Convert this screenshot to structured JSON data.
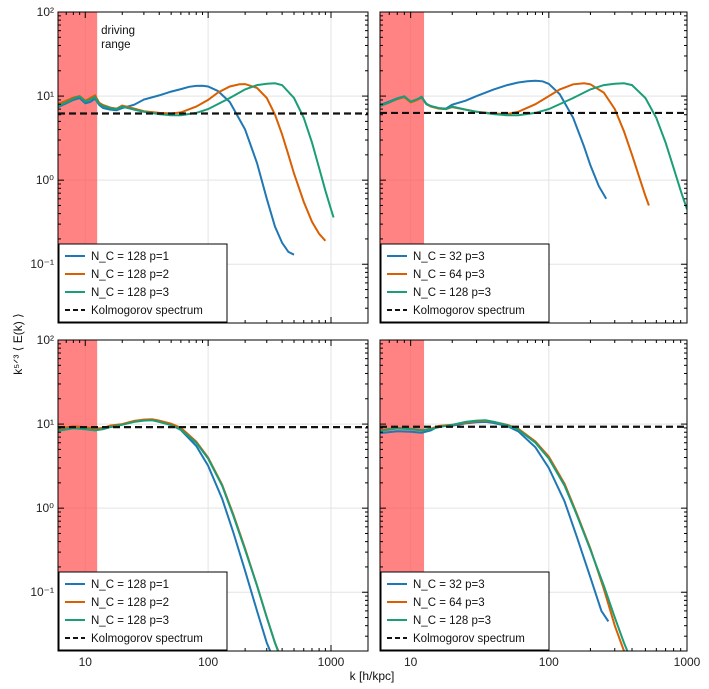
{
  "figure": {
    "ylabel": "k⁵ᐟ³ ⟨ E(k) ⟩",
    "xlabel": "k [h/kpc]"
  },
  "chart_data": [
    {
      "type": "line",
      "panel": "top-left",
      "xscale": "log",
      "yscale": "log",
      "xlim": [
        6,
        2000
      ],
      "ylim": [
        0.02,
        100
      ],
      "xticks": [
        10,
        100,
        1000
      ],
      "xtick_labels": [
        "10",
        "100",
        "1000"
      ],
      "yticks": [
        0.1,
        1,
        10,
        100
      ],
      "ytick_labels": [
        "10⁻¹",
        "10⁰",
        "10¹",
        "10²"
      ],
      "show_xtick_labels": false,
      "grid": true,
      "driving_range": [
        6,
        12.5
      ],
      "annotation": [
        "driving",
        "range"
      ],
      "kolmogorov_level": 6.2,
      "legend_position": "lower-left",
      "series": [
        {
          "name": "N_C = 128 p=1",
          "color": "#1f77b4",
          "x": [
            6,
            7,
            8,
            9,
            10,
            11,
            12,
            13,
            14,
            16,
            18,
            20,
            25,
            30,
            40,
            50,
            60,
            70,
            80,
            90,
            100,
            120,
            150,
            200,
            250,
            300,
            350,
            400,
            450,
            500
          ],
          "y": [
            7.4,
            8.2,
            9.0,
            9.5,
            8.2,
            8.5,
            9.3,
            7.8,
            7.2,
            6.9,
            6.8,
            7.2,
            7.9,
            9.1,
            10.2,
            11.3,
            12.1,
            12.9,
            13.2,
            13.3,
            13.0,
            11.5,
            8.5,
            4.0,
            1.6,
            0.6,
            0.28,
            0.18,
            0.14,
            0.13
          ]
        },
        {
          "name": "N_C = 128 p=2",
          "color": "#d95f02",
          "x": [
            6,
            7,
            8,
            9,
            10,
            11,
            12,
            13,
            14,
            16,
            18,
            20,
            25,
            30,
            40,
            50,
            60,
            80,
            100,
            120,
            150,
            180,
            200,
            250,
            300,
            350,
            400,
            450,
            500,
            600,
            700,
            800,
            900
          ],
          "y": [
            8.0,
            8.8,
            9.6,
            10.0,
            8.8,
            9.5,
            10.2,
            8.3,
            7.8,
            7.3,
            7.1,
            7.7,
            7.1,
            6.6,
            6.3,
            6.2,
            6.4,
            7.5,
            9.0,
            11.0,
            13.0,
            13.8,
            13.9,
            12.5,
            9.5,
            6.0,
            3.5,
            2.0,
            1.2,
            0.55,
            0.32,
            0.23,
            0.19
          ]
        },
        {
          "name": "N_C = 128 p=3",
          "color": "#1b9e77",
          "x": [
            6,
            7,
            8,
            9,
            10,
            11,
            12,
            13,
            14,
            16,
            18,
            20,
            25,
            30,
            40,
            50,
            60,
            80,
            100,
            150,
            200,
            250,
            300,
            350,
            400,
            500,
            600,
            700,
            800,
            900,
            1000,
            1050
          ],
          "y": [
            7.6,
            8.4,
            9.3,
            9.9,
            8.6,
            9.1,
            9.7,
            8.0,
            7.6,
            7.2,
            7.0,
            7.5,
            6.9,
            6.5,
            6.1,
            5.9,
            5.9,
            6.3,
            7.0,
            9.5,
            12.0,
            13.5,
            14.0,
            14.2,
            13.5,
            9.5,
            5.5,
            2.8,
            1.4,
            0.75,
            0.45,
            0.36
          ]
        },
        {
          "name": "Kolmogorov spectrum",
          "color": "#111111",
          "dashed": true,
          "y_const": 6.2
        }
      ]
    },
    {
      "type": "line",
      "panel": "top-right",
      "xscale": "log",
      "yscale": "log",
      "xlim": [
        6,
        1000
      ],
      "ylim": [
        0.02,
        100
      ],
      "xticks": [
        10,
        100,
        1000
      ],
      "xtick_labels": [
        "10",
        "100",
        "1000"
      ],
      "yticks": [
        0.1,
        1,
        10,
        100
      ],
      "show_xtick_labels": false,
      "show_ytick_labels": false,
      "grid": true,
      "driving_range": [
        6,
        12.5
      ],
      "kolmogorov_level": 6.3,
      "legend_position": "lower-left",
      "series": [
        {
          "name": "N_C = 32 p=3",
          "color": "#1f77b4",
          "x": [
            6,
            7,
            8,
            9,
            10,
            11,
            12,
            13,
            14,
            16,
            18,
            20,
            25,
            30,
            40,
            50,
            60,
            70,
            80,
            90,
            100,
            120,
            150,
            180,
            200,
            230,
            260
          ],
          "y": [
            7.8,
            8.6,
            9.4,
            9.9,
            8.5,
            9.0,
            9.8,
            8.1,
            7.6,
            7.2,
            7.1,
            7.9,
            8.8,
            10.0,
            12.0,
            13.5,
            14.5,
            15.0,
            15.2,
            15.0,
            14.0,
            10.5,
            5.5,
            2.5,
            1.5,
            0.85,
            0.6
          ]
        },
        {
          "name": "N_C = 64 p=3",
          "color": "#d95f02",
          "x": [
            6,
            7,
            8,
            9,
            10,
            11,
            12,
            13,
            14,
            16,
            18,
            20,
            25,
            30,
            40,
            50,
            60,
            80,
            100,
            120,
            150,
            180,
            200,
            250,
            300,
            350,
            400,
            450,
            500,
            530
          ],
          "y": [
            7.6,
            8.4,
            9.2,
            9.7,
            8.4,
            8.9,
            9.6,
            8.0,
            7.5,
            7.1,
            7.0,
            7.4,
            6.9,
            6.5,
            6.2,
            6.1,
            6.5,
            8.0,
            10.0,
            12.0,
            13.8,
            14.2,
            13.8,
            11.0,
            7.0,
            3.8,
            2.0,
            1.1,
            0.65,
            0.5
          ]
        },
        {
          "name": "N_C = 128 p=3",
          "color": "#1b9e77",
          "x": [
            6,
            7,
            8,
            9,
            10,
            11,
            12,
            13,
            14,
            16,
            18,
            20,
            25,
            30,
            40,
            50,
            60,
            80,
            100,
            150,
            200,
            250,
            300,
            350,
            400,
            500,
            600,
            700,
            800,
            900,
            1000
          ],
          "y": [
            7.6,
            8.4,
            9.3,
            9.9,
            8.6,
            9.1,
            9.7,
            8.0,
            7.6,
            7.2,
            7.0,
            7.5,
            6.9,
            6.5,
            6.1,
            5.9,
            5.9,
            6.3,
            7.0,
            9.5,
            12.0,
            13.5,
            14.0,
            14.2,
            13.5,
            9.5,
            5.5,
            2.8,
            1.4,
            0.75,
            0.45
          ]
        },
        {
          "name": "Kolmogorov spectrum",
          "color": "#111111",
          "dashed": true,
          "y_const": 6.3
        }
      ]
    },
    {
      "type": "line",
      "panel": "bottom-left",
      "xscale": "log",
      "yscale": "log",
      "xlim": [
        6,
        2000
      ],
      "ylim": [
        0.02,
        100
      ],
      "xticks": [
        10,
        100,
        1000
      ],
      "xtick_labels": [
        "10",
        "100",
        "1000"
      ],
      "yticks": [
        0.1,
        1,
        10,
        100
      ],
      "ytick_labels": [
        "10⁻¹",
        "10⁰",
        "10¹",
        "10²"
      ],
      "show_xtick_labels": true,
      "grid": true,
      "driving_range": [
        6,
        12.5
      ],
      "kolmogorov_level": 9.2,
      "legend_position": "lower-left",
      "series": [
        {
          "name": "N_C = 128 p=1",
          "color": "#1f77b4",
          "x": [
            6,
            8,
            10,
            12,
            14,
            16,
            20,
            25,
            30,
            35,
            40,
            50,
            60,
            80,
            100,
            130,
            160,
            200,
            250,
            300,
            330
          ],
          "y": [
            8.6,
            9.2,
            9.0,
            8.6,
            8.8,
            9.4,
            9.9,
            10.8,
            11.2,
            11.3,
            10.8,
            9.8,
            8.5,
            5.5,
            3.2,
            1.3,
            0.52,
            0.18,
            0.06,
            0.025,
            0.018
          ]
        },
        {
          "name": "N_C = 128 p=2",
          "color": "#d95f02",
          "x": [
            6,
            8,
            10,
            12,
            14,
            16,
            20,
            25,
            30,
            35,
            40,
            50,
            60,
            80,
            100,
            130,
            160,
            200,
            250,
            300,
            350,
            390
          ],
          "y": [
            8.8,
            9.4,
            9.2,
            8.8,
            9.0,
            9.6,
            10.0,
            10.9,
            11.3,
            11.4,
            11.0,
            10.1,
            9.0,
            6.2,
            4.0,
            1.9,
            0.85,
            0.33,
            0.12,
            0.05,
            0.025,
            0.017
          ]
        },
        {
          "name": "N_C = 128 p=3",
          "color": "#1b9e77",
          "x": [
            6,
            8,
            10,
            12,
            14,
            16,
            20,
            25,
            30,
            35,
            40,
            50,
            60,
            80,
            100,
            130,
            160,
            200,
            250,
            300,
            350,
            380
          ],
          "y": [
            8.3,
            8.9,
            8.7,
            8.4,
            8.7,
            9.2,
            9.8,
            10.6,
            11.0,
            11.1,
            10.6,
            9.7,
            8.6,
            6.0,
            3.9,
            1.85,
            0.82,
            0.32,
            0.12,
            0.05,
            0.025,
            0.018
          ]
        },
        {
          "name": "Kolmogorov spectrum",
          "color": "#111111",
          "dashed": true,
          "y_const": 9.2
        }
      ]
    },
    {
      "type": "line",
      "panel": "bottom-right",
      "xscale": "log",
      "yscale": "log",
      "xlim": [
        6,
        1000
      ],
      "ylim": [
        0.02,
        100
      ],
      "xticks": [
        10,
        100,
        1000
      ],
      "xtick_labels": [
        "10",
        "100",
        "1000"
      ],
      "yticks": [
        0.1,
        1,
        10,
        100
      ],
      "show_xtick_labels": true,
      "show_ytick_labels": false,
      "grid": true,
      "driving_range": [
        6,
        12.5
      ],
      "kolmogorov_level": 9.3,
      "legend_position": "lower-left",
      "series": [
        {
          "name": "N_C = 32 p=3",
          "color": "#1f77b4",
          "x": [
            6,
            8,
            10,
            12,
            14,
            16,
            20,
            25,
            30,
            35,
            40,
            50,
            60,
            80,
            100,
            130,
            160,
            200,
            240,
            270
          ],
          "y": [
            7.8,
            8.2,
            8.1,
            7.9,
            8.4,
            9.5,
            9.6,
            10.2,
            10.5,
            10.6,
            10.3,
            9.5,
            8.2,
            5.3,
            3.0,
            1.2,
            0.45,
            0.15,
            0.06,
            0.045
          ]
        },
        {
          "name": "N_C = 64 p=3",
          "color": "#d95f02",
          "x": [
            6,
            8,
            10,
            12,
            14,
            16,
            20,
            25,
            30,
            35,
            40,
            50,
            60,
            80,
            100,
            130,
            160,
            200,
            250,
            300,
            350,
            370
          ],
          "y": [
            8.5,
            9.0,
            8.8,
            8.5,
            8.8,
            9.5,
            9.8,
            10.4,
            10.8,
            10.9,
            10.6,
            9.8,
            8.8,
            6.2,
            4.1,
            1.95,
            0.85,
            0.33,
            0.11,
            0.04,
            0.02,
            0.017
          ]
        },
        {
          "name": "N_C = 128 p=3",
          "color": "#1b9e77",
          "x": [
            6,
            8,
            10,
            12,
            14,
            16,
            20,
            25,
            30,
            35,
            40,
            50,
            60,
            80,
            100,
            130,
            160,
            200,
            250,
            300,
            350,
            380
          ],
          "y": [
            8.3,
            8.9,
            8.7,
            8.4,
            8.7,
            9.2,
            9.8,
            10.6,
            11.0,
            11.1,
            10.6,
            9.7,
            8.6,
            6.0,
            3.9,
            1.85,
            0.82,
            0.32,
            0.12,
            0.05,
            0.025,
            0.018
          ]
        },
        {
          "name": "Kolmogorov spectrum",
          "color": "#111111",
          "dashed": true,
          "y_const": 9.3
        }
      ]
    }
  ]
}
